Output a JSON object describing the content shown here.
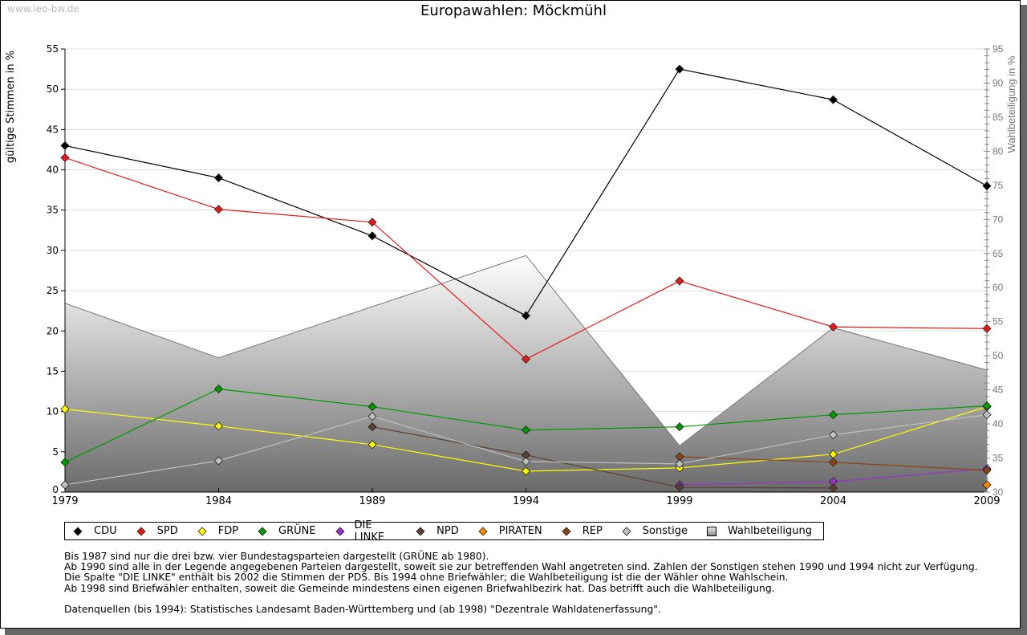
{
  "watermark": "www.leo-bw.de",
  "title": "Europawahlen: Möckmühl",
  "chart_data": {
    "type": "line",
    "title": "Europawahlen: Möckmühl",
    "x": [
      1979,
      1984,
      1989,
      1994,
      1999,
      2004,
      2009
    ],
    "xlabel": "",
    "ylabel": "gültige Stimmen in %",
    "ylim": [
      0,
      55
    ],
    "yticks": [
      0,
      5,
      10,
      15,
      20,
      25,
      30,
      35,
      40,
      45,
      50,
      55
    ],
    "y2label": "Wahlbeteiligung in %",
    "y2lim": [
      30,
      95
    ],
    "y2ticks": [
      30,
      35,
      40,
      45,
      50,
      55,
      60,
      65,
      70,
      75,
      80,
      85,
      90,
      95
    ],
    "grid": true,
    "legend_position": "bottom",
    "series": [
      {
        "name": "CDU",
        "color": "#000000",
        "values": [
          43.0,
          39.0,
          31.8,
          21.9,
          52.5,
          48.7,
          38.0
        ]
      },
      {
        "name": "SPD",
        "color": "#e41a1c",
        "values": [
          41.5,
          35.1,
          33.5,
          16.5,
          26.2,
          20.5,
          20.3
        ]
      },
      {
        "name": "FDP",
        "color": "#ffff00",
        "values": [
          10.3,
          8.2,
          5.9,
          2.6,
          3.0,
          4.7,
          10.6
        ]
      },
      {
        "name": "GRÜNE",
        "color": "#009900",
        "values": [
          3.7,
          12.8,
          10.6,
          7.7,
          8.1,
          9.6,
          10.7
        ]
      },
      {
        "name": "DIE LINKE",
        "color": "#9933cc",
        "values": [
          null,
          null,
          null,
          null,
          0.9,
          1.3,
          2.9
        ]
      },
      {
        "name": "NPD",
        "color": "#5c4033",
        "values": [
          null,
          null,
          8.1,
          4.6,
          0.6,
          0.5,
          null
        ]
      },
      {
        "name": "PIRATEN",
        "color": "#ff8800",
        "values": [
          null,
          null,
          null,
          null,
          null,
          null,
          0.9
        ]
      },
      {
        "name": "REP",
        "color": "#8b4513",
        "values": [
          null,
          null,
          null,
          null,
          4.4,
          3.7,
          2.7
        ]
      },
      {
        "name": "Sonstige",
        "color": "#c0c0c0",
        "values": [
          0.9,
          3.9,
          9.4,
          3.8,
          3.5,
          7.1,
          9.6
        ]
      }
    ],
    "area": {
      "name": "Wahlbeteiligung",
      "axis": "right",
      "values": [
        57.7,
        49.7,
        57.2,
        64.7,
        36.8,
        54.1,
        47.9
      ]
    }
  },
  "legend": [
    {
      "label": "CDU",
      "color": "#000000",
      "shape": "diamond"
    },
    {
      "label": "SPD",
      "color": "#e41a1c",
      "shape": "diamond"
    },
    {
      "label": "FDP",
      "color": "#ffff00",
      "shape": "diamond"
    },
    {
      "label": "GRÜNE",
      "color": "#009900",
      "shape": "diamond"
    },
    {
      "label": "DIE LINKE",
      "color": "#9933cc",
      "shape": "diamond"
    },
    {
      "label": "NPD",
      "color": "#5c4033",
      "shape": "diamond"
    },
    {
      "label": "PIRATEN",
      "color": "#ff8800",
      "shape": "diamond"
    },
    {
      "label": "REP",
      "color": "#8b4513",
      "shape": "diamond"
    },
    {
      "label": "Sonstige",
      "color": "#c0c0c0",
      "shape": "diamond"
    },
    {
      "label": "Wahlbeteiligung",
      "color": "#999999",
      "shape": "square"
    }
  ],
  "notes": [
    "Bis 1987 sind nur die drei bzw. vier Bundestagsparteien dargestellt (GRÜNE ab 1980).",
    "Ab 1990 sind alle in der Legende angegebenen Parteien dargestellt, soweit sie zur betreffenden Wahl angetreten sind. Zahlen der Sonstigen stehen 1990 und 1994 nicht zur Verfügung.",
    "Die Spalte \"DIE LINKE\" enthält bis 2002 die Stimmen der PDS. Bis 1994 ohne Briefwähler; die Wahlbeteiligung ist die der Wähler ohne Wahlschein.",
    "Ab 1998 sind Briefwähler enthalten, soweit die Gemeinde mindestens einen eigenen Briefwahlbezirk hat. Das betrifft auch die Wahlbeteiligung."
  ],
  "source": "Datenquellen (bis 1994): Statistisches Landesamt Baden-Württemberg und (ab 1998) \"Dezentrale Wahldatenerfassung\"."
}
